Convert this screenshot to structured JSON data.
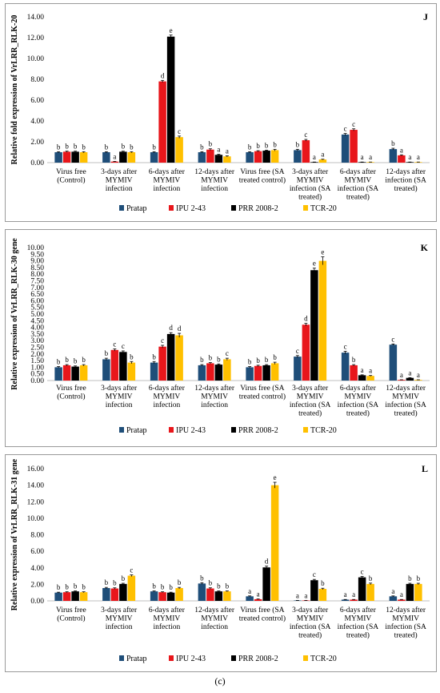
{
  "figure_caption": "(c)",
  "chart_data": [
    {
      "type": "bar",
      "panel_letter": "J",
      "ylabel": "Relative fold expression of VrLRR_RLK-20",
      "ylim": [
        0,
        14
      ],
      "yticks": [
        "0.00",
        "2.00",
        "4.00",
        "6.00",
        "8.00",
        "10.00",
        "12.00",
        "14.00"
      ],
      "grid": false,
      "legend_position": "bottom",
      "categories": [
        [
          "Virus free",
          "(Control)"
        ],
        [
          "3-days after",
          "MYMIV",
          "infection"
        ],
        [
          "6-days after",
          "MYMIV",
          "infection"
        ],
        [
          "12-days after",
          "MYMIV",
          "infection"
        ],
        [
          "Virus free (SA",
          "treated control)"
        ],
        [
          "3-days after",
          "MYMIV",
          "infection (SA",
          "treated)"
        ],
        [
          "6-days after",
          "MYMIV",
          "infection (SA",
          "treated)"
        ],
        [
          "12-days after",
          "infection (SA",
          "treated)"
        ]
      ],
      "series": [
        {
          "name": "Pratap",
          "color": "#1f4e79",
          "values": [
            1.0,
            1.0,
            1.0,
            1.0,
            1.0,
            1.2,
            2.7,
            1.3
          ],
          "errors": [
            0.05,
            0.05,
            0.05,
            0.05,
            0.05,
            0.08,
            0.1,
            0.08
          ],
          "letters": [
            "b",
            "b",
            "b",
            "b",
            "b",
            "b",
            "c",
            "b"
          ]
        },
        {
          "name": "IPU 2-43",
          "color": "#e8161b",
          "values": [
            1.05,
            0.1,
            7.8,
            1.25,
            1.1,
            2.15,
            3.15,
            0.7
          ],
          "errors": [
            0.05,
            0.02,
            0.1,
            0.08,
            0.05,
            0.08,
            0.1,
            0.05
          ],
          "letters": [
            "b",
            "a",
            "d",
            "b",
            "b",
            "c",
            "c",
            "a"
          ]
        },
        {
          "name": "PRR 2008-2",
          "color": "#000000",
          "values": [
            1.05,
            1.05,
            12.1,
            0.75,
            1.15,
            0.05,
            0.05,
            0.05
          ],
          "errors": [
            0.05,
            0.05,
            0.15,
            0.05,
            0.05,
            0.01,
            0.01,
            0.01
          ],
          "letters": [
            "b",
            "b",
            "e",
            "a",
            "b",
            "a",
            "a",
            "a"
          ]
        },
        {
          "name": "TCR-20",
          "color": "#ffc000",
          "values": [
            1.0,
            1.0,
            2.45,
            0.6,
            1.2,
            0.3,
            0.05,
            0.05
          ],
          "errors": [
            0.05,
            0.05,
            0.1,
            0.05,
            0.08,
            0.03,
            0.01,
            0.01
          ],
          "letters": [
            "b",
            "b",
            "c",
            "a",
            "b",
            "a",
            "a",
            "a"
          ]
        }
      ]
    },
    {
      "type": "bar",
      "panel_letter": "K",
      "ylabel": "Relative expression of VrLRR_RLK-30 gene",
      "ylim": [
        0,
        10
      ],
      "yticks": [
        "0.00",
        "0.50",
        "1.00",
        "1.50",
        "2.00",
        "2.50",
        "3.00",
        "3.50",
        "4.00",
        "4.50",
        "5.00",
        "5.50",
        "6.00",
        "6.50",
        "7.00",
        "7.50",
        "8.00",
        "8.50",
        "9.00",
        "9.50",
        "10.00"
      ],
      "grid": false,
      "legend_position": "bottom",
      "categories": [
        [
          "Virus free",
          "(Control)"
        ],
        [
          "3-days after",
          "MYMIV",
          "infection"
        ],
        [
          "6-days after",
          "MYMIV",
          "infection"
        ],
        [
          "12-days after",
          "MYMIV",
          "infection"
        ],
        [
          "Virus free (SA",
          "treated control)"
        ],
        [
          "3-days after",
          "MYMIV",
          "infection (SA",
          "treated)"
        ],
        [
          "6-days after",
          "MYMIV",
          "infection (SA",
          "treated)"
        ],
        [
          "12-days after",
          "MYMIV",
          "infection (SA",
          "treated)"
        ]
      ],
      "series": [
        {
          "name": "Pratap",
          "color": "#1f4e79",
          "values": [
            1.0,
            1.6,
            1.35,
            1.15,
            1.0,
            1.8,
            2.1,
            2.7
          ],
          "errors": [
            0.05,
            0.08,
            0.08,
            0.05,
            0.05,
            0.08,
            0.1,
            0.05
          ],
          "letters": [
            "b",
            "b",
            "b",
            "b",
            "b",
            "c",
            "c",
            "c"
          ]
        },
        {
          "name": "IPU 2-43",
          "color": "#e8161b",
          "values": [
            1.15,
            2.3,
            2.55,
            1.3,
            1.1,
            4.2,
            1.15,
            0.05
          ],
          "errors": [
            0.05,
            0.08,
            0.1,
            0.05,
            0.05,
            0.1,
            0.05,
            0.01
          ],
          "letters": [
            "b",
            "c",
            "c",
            "b",
            "b",
            "d",
            "b",
            "a"
          ]
        },
        {
          "name": "PRR 2008-2",
          "color": "#000000",
          "values": [
            1.05,
            2.15,
            3.5,
            1.2,
            1.15,
            8.3,
            0.4,
            0.2
          ],
          "errors": [
            0.05,
            0.08,
            0.1,
            0.05,
            0.05,
            0.15,
            0.03,
            0.02
          ],
          "letters": [
            "b",
            "c",
            "d",
            "b",
            "b",
            "e",
            "a",
            "a"
          ]
        },
        {
          "name": "TCR-20",
          "color": "#ffc000",
          "values": [
            1.15,
            1.35,
            3.4,
            1.6,
            1.3,
            9.0,
            0.35,
            0.05
          ],
          "errors": [
            0.05,
            0.08,
            0.15,
            0.08,
            0.08,
            0.3,
            0.03,
            0.01
          ],
          "letters": [
            "b",
            "b",
            "d",
            "c",
            "b",
            "e",
            "a",
            "a"
          ]
        }
      ]
    },
    {
      "type": "bar",
      "panel_letter": "L",
      "ylabel": "Relative expression of VrLRR_RLK-31 gene",
      "ylim": [
        0,
        16
      ],
      "yticks": [
        "0.00",
        "2.00",
        "4.00",
        "6.00",
        "8.00",
        "10.00",
        "12.00",
        "14.00",
        "16.00"
      ],
      "grid": false,
      "legend_position": "bottom",
      "categories": [
        [
          "Virus free",
          "(Control)"
        ],
        [
          "3-days after",
          "MYMIV",
          "infection"
        ],
        [
          "6-days after",
          "MYMIV",
          "infection"
        ],
        [
          "12-days after",
          "MYMIV",
          "infection"
        ],
        [
          "Virus free (SA",
          "treated control)"
        ],
        [
          "3-days after",
          "MYMIV",
          "infection (SA",
          "treated)"
        ],
        [
          "6-days after",
          "MYMIV",
          "infection (SA",
          "treated)"
        ],
        [
          "12-days after",
          "MYMIV",
          "infection (SA",
          "treated)"
        ]
      ],
      "series": [
        {
          "name": "Pratap",
          "color": "#1f4e79",
          "values": [
            1.0,
            1.55,
            1.15,
            2.1,
            0.55,
            0.05,
            0.15,
            0.55
          ],
          "errors": [
            0.05,
            0.08,
            0.05,
            0.1,
            0.05,
            0.01,
            0.02,
            0.05
          ],
          "letters": [
            "b",
            "b",
            "b",
            "b",
            "a",
            "a",
            "a",
            "a"
          ]
        },
        {
          "name": "IPU 2-43",
          "color": "#e8161b",
          "values": [
            1.05,
            1.5,
            1.05,
            1.5,
            0.2,
            0.05,
            0.15,
            0.15
          ],
          "errors": [
            0.05,
            0.08,
            0.05,
            0.08,
            0.03,
            0.01,
            0.02,
            0.02
          ],
          "letters": [
            "b",
            "b",
            "b",
            "b",
            "a",
            "a",
            "a",
            "a"
          ]
        },
        {
          "name": "PRR 2008-2",
          "color": "#000000",
          "values": [
            1.15,
            2.05,
            1.0,
            1.15,
            4.05,
            2.5,
            2.85,
            2.05
          ],
          "errors": [
            0.05,
            0.08,
            0.05,
            0.05,
            0.15,
            0.1,
            0.1,
            0.08
          ],
          "letters": [
            "b",
            "b",
            "b",
            "b",
            "d",
            "c",
            "c",
            "b"
          ]
        },
        {
          "name": "TCR-20",
          "color": "#ffc000",
          "values": [
            1.05,
            3.05,
            1.55,
            1.15,
            14.0,
            1.45,
            2.05,
            2.05
          ],
          "errors": [
            0.05,
            0.1,
            0.08,
            0.05,
            0.35,
            0.08,
            0.1,
            0.08
          ],
          "letters": [
            "b",
            "c",
            "b",
            "b",
            "e",
            "b",
            "b",
            "b"
          ]
        }
      ]
    }
  ]
}
